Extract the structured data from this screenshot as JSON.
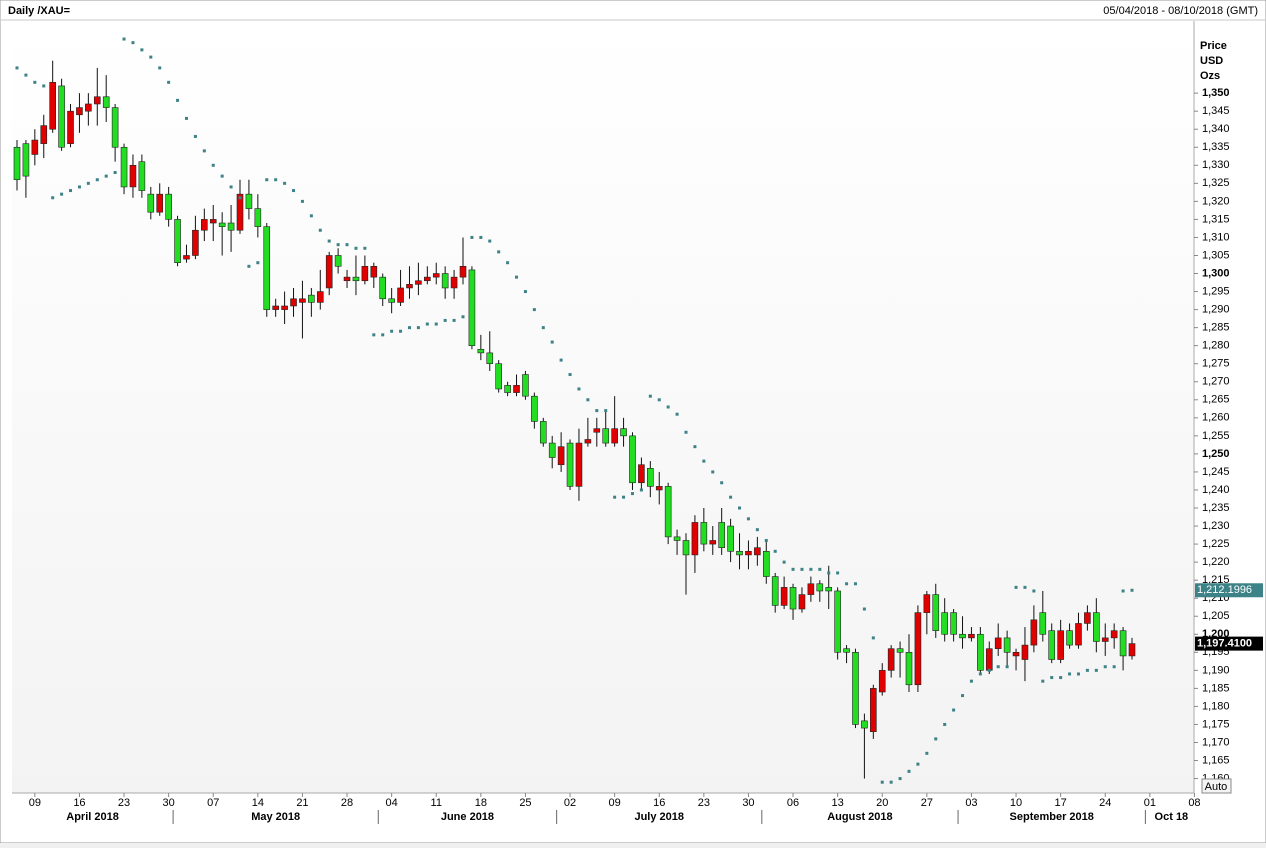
{
  "chart_data": {
    "type": "candlestick",
    "title": "Daily /XAU=",
    "date_range": "05/04/2018 - 08/10/2018 (GMT)",
    "axis_label": [
      "Price",
      "USD",
      "Ozs"
    ],
    "up_color": "#e00000",
    "down_color": "#22dd22",
    "sar_color": "#3d8286",
    "button": "Auto",
    "categories": [
      "2018-04-05",
      "2018-04-06",
      "2018-04-09",
      "2018-04-10",
      "2018-04-11",
      "2018-04-12",
      "2018-04-13",
      "2018-04-16",
      "2018-04-17",
      "2018-04-18",
      "2018-04-19",
      "2018-04-20",
      "2018-04-23",
      "2018-04-24",
      "2018-04-25",
      "2018-04-26",
      "2018-04-27",
      "2018-04-30",
      "2018-05-01",
      "2018-05-02",
      "2018-05-03",
      "2018-05-04",
      "2018-05-07",
      "2018-05-08",
      "2018-05-09",
      "2018-05-10",
      "2018-05-11",
      "2018-05-14",
      "2018-05-15",
      "2018-05-16",
      "2018-05-17",
      "2018-05-18",
      "2018-05-21",
      "2018-05-22",
      "2018-05-23",
      "2018-05-24",
      "2018-05-25",
      "2018-05-28",
      "2018-05-29",
      "2018-05-30",
      "2018-05-31",
      "2018-06-01",
      "2018-06-04",
      "2018-06-05",
      "2018-06-06",
      "2018-06-07",
      "2018-06-08",
      "2018-06-11",
      "2018-06-12",
      "2018-06-13",
      "2018-06-14",
      "2018-06-15",
      "2018-06-18",
      "2018-06-19",
      "2018-06-20",
      "2018-06-21",
      "2018-06-22",
      "2018-06-25",
      "2018-06-26",
      "2018-06-27",
      "2018-06-28",
      "2018-06-29",
      "2018-07-02",
      "2018-07-03",
      "2018-07-04",
      "2018-07-05",
      "2018-07-06",
      "2018-07-09",
      "2018-07-10",
      "2018-07-11",
      "2018-07-12",
      "2018-07-13",
      "2018-07-16",
      "2018-07-17",
      "2018-07-18",
      "2018-07-19",
      "2018-07-20",
      "2018-07-23",
      "2018-07-24",
      "2018-07-25",
      "2018-07-26",
      "2018-07-27",
      "2018-07-30",
      "2018-07-31",
      "2018-08-01",
      "2018-08-02",
      "2018-08-03",
      "2018-08-06",
      "2018-08-07",
      "2018-08-08",
      "2018-08-09",
      "2018-08-10",
      "2018-08-13",
      "2018-08-14",
      "2018-08-15",
      "2018-08-16",
      "2018-08-17",
      "2018-08-20",
      "2018-08-21",
      "2018-08-22",
      "2018-08-23",
      "2018-08-24",
      "2018-08-27",
      "2018-08-28",
      "2018-08-29",
      "2018-08-30",
      "2018-08-31",
      "2018-09-03",
      "2018-09-04",
      "2018-09-05",
      "2018-09-06",
      "2018-09-07",
      "2018-09-10",
      "2018-09-11",
      "2018-09-12",
      "2018-09-13",
      "2018-09-14",
      "2018-09-17",
      "2018-09-18",
      "2018-09-19",
      "2018-09-20",
      "2018-09-21",
      "2018-09-24",
      "2018-09-25",
      "2018-09-26",
      "2018-09-27"
    ],
    "open": [
      1335,
      1336,
      1333,
      1336,
      1340,
      1352,
      1336,
      1344,
      1345,
      1347,
      1349,
      1346,
      1335,
      1324,
      1331,
      1322,
      1317,
      1322,
      1315,
      1304,
      1305,
      1312,
      1314,
      1314,
      1314,
      1312,
      1322,
      1318,
      1313,
      1290,
      1290,
      1291,
      1292,
      1294,
      1292,
      1296,
      1305,
      1298,
      1299,
      1298,
      1299,
      1299,
      1293,
      1292,
      1296,
      1297,
      1298,
      1299,
      1300,
      1296,
      1299,
      1301,
      1279,
      1278,
      1275,
      1269,
      1267,
      1272,
      1266,
      1259,
      1253,
      1247,
      1253,
      1241,
      1253,
      1256,
      1257,
      1253,
      1257,
      1255,
      1242,
      1246,
      1240,
      1241,
      1227,
      1226,
      1222,
      1231,
      1225,
      1231,
      1230,
      1223,
      1222,
      1222,
      1223,
      1216,
      1208,
      1213,
      1207,
      1211,
      1214,
      1213,
      1212,
      1196,
      1195,
      1176,
      1173,
      1184,
      1190,
      1196,
      1195,
      1186,
      1206,
      1211,
      1206,
      1206,
      1200,
      1199,
      1200,
      1190,
      1196,
      1199,
      1194,
      1193,
      1197,
      1206,
      1201,
      1193,
      1201,
      1197,
      1203,
      1206,
      1198,
      1199,
      1201,
      1194
    ],
    "high": [
      1337,
      1337,
      1340,
      1344,
      1359,
      1354,
      1347,
      1350,
      1350,
      1357,
      1355,
      1347,
      1336,
      1333,
      1333,
      1324,
      1325,
      1324,
      1316,
      1308,
      1316,
      1318,
      1319,
      1317,
      1319,
      1326,
      1326,
      1322,
      1314,
      1293,
      1295,
      1296,
      1298,
      1296,
      1301,
      1306,
      1307,
      1301,
      1305,
      1305,
      1303,
      1300,
      1296,
      1301,
      1302,
      1303,
      1302,
      1303,
      1302,
      1301,
      1310,
      1302,
      1283,
      1284,
      1276,
      1270,
      1272,
      1273,
      1267,
      1260,
      1255,
      1256,
      1254,
      1257,
      1260,
      1260,
      1262,
      1266,
      1260,
      1256,
      1249,
      1248,
      1245,
      1242,
      1229,
      1228,
      1233,
      1235,
      1230,
      1235,
      1232,
      1228,
      1226,
      1227,
      1226,
      1217,
      1216,
      1214,
      1213,
      1216,
      1215,
      1219,
      1213,
      1197,
      1196,
      1178,
      1186,
      1192,
      1197,
      1198,
      1200,
      1208,
      1212,
      1214,
      1210,
      1207,
      1205,
      1202,
      1202,
      1198,
      1203,
      1201,
      1196,
      1202,
      1208,
      1212,
      1203,
      1204,
      1203,
      1206,
      1208,
      1210,
      1203,
      1203,
      1202,
      1199
    ],
    "low": [
      1323,
      1321,
      1330,
      1332,
      1339,
      1334,
      1335,
      1339,
      1341,
      1341,
      1342,
      1331,
      1322,
      1321,
      1321,
      1315,
      1316,
      1313,
      1302,
      1303,
      1304,
      1309,
      1309,
      1305,
      1306,
      1311,
      1315,
      1310,
      1288,
      1288,
      1286,
      1288,
      1282,
      1288,
      1290,
      1294,
      1300,
      1296,
      1294,
      1297,
      1296,
      1291,
      1289,
      1291,
      1293,
      1294,
      1297,
      1297,
      1293,
      1293,
      1297,
      1279,
      1276,
      1273,
      1267,
      1266,
      1266,
      1265,
      1257,
      1252,
      1246,
      1245,
      1240,
      1237,
      1252,
      1252,
      1252,
      1252,
      1252,
      1240,
      1240,
      1238,
      1236,
      1225,
      1222,
      1211,
      1217,
      1223,
      1222,
      1222,
      1220,
      1218,
      1218,
      1219,
      1214,
      1206,
      1207,
      1204,
      1206,
      1209,
      1209,
      1207,
      1193,
      1192,
      1174,
      1160,
      1171,
      1183,
      1188,
      1188,
      1184,
      1184,
      1200,
      1199,
      1198,
      1198,
      1196,
      1198,
      1189,
      1189,
      1194,
      1191,
      1190,
      1187,
      1195,
      1198,
      1192,
      1192,
      1196,
      1196,
      1201,
      1195,
      1194,
      1196,
      1190,
      1193
    ],
    "close": [
      1326,
      1327,
      1337,
      1341,
      1353,
      1335,
      1345,
      1346,
      1347,
      1349,
      1346,
      1335,
      1324,
      1330,
      1323,
      1317,
      1322,
      1315,
      1303,
      1305,
      1312,
      1315,
      1315,
      1313,
      1312,
      1322,
      1318,
      1313,
      1290,
      1291,
      1291,
      1293,
      1293,
      1292,
      1295,
      1305,
      1302,
      1299,
      1298,
      1302,
      1302,
      1293,
      1292,
      1296,
      1297,
      1298,
      1299,
      1300,
      1296,
      1299,
      1302,
      1280,
      1278,
      1275,
      1268,
      1267,
      1269,
      1266,
      1259,
      1253,
      1249,
      1252,
      1241,
      1253,
      1254,
      1257,
      1253,
      1257,
      1255,
      1242,
      1247,
      1241,
      1241,
      1227,
      1226,
      1222,
      1231,
      1225,
      1226,
      1224,
      1223,
      1222,
      1223,
      1224,
      1216,
      1208,
      1213,
      1207,
      1211,
      1214,
      1212,
      1212,
      1195,
      1195,
      1175,
      1174,
      1185,
      1190,
      1196,
      1195,
      1186,
      1206,
      1211,
      1201,
      1200,
      1200,
      1199,
      1200,
      1190,
      1196,
      1199,
      1195,
      1195,
      1197,
      1204,
      1200,
      1193,
      1201,
      1197,
      1203,
      1206,
      1198,
      1199,
      1201,
      1194,
      1197.41
    ],
    "sar": [
      1357,
      1355,
      1353,
      1352,
      1321,
      1322,
      1323,
      1324,
      1325,
      1326,
      1327,
      1328,
      1365,
      1364,
      1362,
      1360,
      1357,
      1353,
      1348,
      1343,
      1338,
      1334,
      1330,
      1327,
      1324,
      1321,
      1302,
      1303,
      1326,
      1326,
      1325,
      1323,
      1320,
      1316,
      1312,
      1309,
      1308,
      1308,
      1307,
      1307,
      1283,
      1283,
      1284,
      1284,
      1285,
      1285,
      1286,
      1286,
      1287,
      1287,
      1288,
      1310,
      1310,
      1309,
      1306,
      1303,
      1299,
      1295,
      1290,
      1285,
      1281,
      1276,
      1272,
      1268,
      1265,
      1262,
      1262,
      1238,
      1238,
      1239,
      1240,
      1266,
      1265,
      1263,
      1261,
      1256,
      1252,
      1248,
      1245,
      1242,
      1238,
      1235,
      1232,
      1229,
      1226,
      1223,
      1220,
      1218,
      1218,
      1218,
      1218,
      1217,
      1217,
      1214,
      1214,
      1207,
      1199,
      1159,
      1159,
      1160,
      1162,
      1164,
      1167,
      1171,
      1175,
      1179,
      1183,
      1187,
      1189,
      1190,
      1191,
      1191,
      1213,
      1213,
      1212,
      1187,
      1188,
      1188,
      1189,
      1189,
      1190,
      1190,
      1191,
      1191,
      1212,
      1212.1996
    ],
    "tags": [
      {
        "value": 1212.1996,
        "label": "1,212.1996"
      },
      {
        "value": 1197.41,
        "label": "1,197.4100"
      }
    ],
    "ylim": [
      1156,
      1370
    ],
    "yticks": [
      {
        "value": 1160,
        "label": "1,160"
      },
      {
        "value": 1165,
        "label": "1,165"
      },
      {
        "value": 1170,
        "label": "1,170"
      },
      {
        "value": 1175,
        "label": "1,175"
      },
      {
        "value": 1180,
        "label": "1,180"
      },
      {
        "value": 1185,
        "label": "1,185"
      },
      {
        "value": 1190,
        "label": "1,190"
      },
      {
        "value": 1195,
        "label": "1,195"
      },
      {
        "value": 1200,
        "label": "1,200"
      },
      {
        "value": 1205,
        "label": "1,205"
      },
      {
        "value": 1210,
        "label": "1,210"
      },
      {
        "value": 1215,
        "label": "1,215"
      },
      {
        "value": 1220,
        "label": "1,220"
      },
      {
        "value": 1225,
        "label": "1,225"
      },
      {
        "value": 1230,
        "label": "1,230"
      },
      {
        "value": 1235,
        "label": "1,235"
      },
      {
        "value": 1240,
        "label": "1,240"
      },
      {
        "value": 1245,
        "label": "1,245"
      },
      {
        "value": 1250,
        "label": "1,250"
      },
      {
        "value": 1255,
        "label": "1,255"
      },
      {
        "value": 1260,
        "label": "1,260"
      },
      {
        "value": 1265,
        "label": "1,265"
      },
      {
        "value": 1270,
        "label": "1,270"
      },
      {
        "value": 1275,
        "label": "1,275"
      },
      {
        "value": 1280,
        "label": "1,280"
      },
      {
        "value": 1285,
        "label": "1,285"
      },
      {
        "value": 1290,
        "label": "1,290"
      },
      {
        "value": 1295,
        "label": "1,295"
      },
      {
        "value": 1300,
        "label": "1,300"
      },
      {
        "value": 1305,
        "label": "1,305"
      },
      {
        "value": 1310,
        "label": "1,310"
      },
      {
        "value": 1315,
        "label": "1,315"
      },
      {
        "value": 1320,
        "label": "1,320"
      },
      {
        "value": 1325,
        "label": "1,325"
      },
      {
        "value": 1330,
        "label": "1,330"
      },
      {
        "value": 1335,
        "label": "1,335"
      },
      {
        "value": 1340,
        "label": "1,340"
      },
      {
        "value": 1345,
        "label": "1,345"
      },
      {
        "value": 1350,
        "label": "1,350"
      }
    ],
    "xticks": [
      {
        "value": "2018-04-09",
        "label": "09"
      },
      {
        "value": "2018-04-16",
        "label": "16"
      },
      {
        "value": "2018-04-23",
        "label": "23"
      },
      {
        "value": "2018-04-30",
        "label": "30"
      },
      {
        "value": "2018-05-07",
        "label": "07"
      },
      {
        "value": "2018-05-14",
        "label": "14"
      },
      {
        "value": "2018-05-21",
        "label": "21"
      },
      {
        "value": "2018-05-28",
        "label": "28"
      },
      {
        "value": "2018-06-04",
        "label": "04"
      },
      {
        "value": "2018-06-11",
        "label": "11"
      },
      {
        "value": "2018-06-18",
        "label": "18"
      },
      {
        "value": "2018-06-25",
        "label": "25"
      },
      {
        "value": "2018-07-02",
        "label": "02"
      },
      {
        "value": "2018-07-09",
        "label": "09"
      },
      {
        "value": "2018-07-16",
        "label": "16"
      },
      {
        "value": "2018-07-23",
        "label": "23"
      },
      {
        "value": "2018-07-30",
        "label": "30"
      },
      {
        "value": "2018-08-06",
        "label": "06"
      },
      {
        "value": "2018-08-13",
        "label": "13"
      },
      {
        "value": "2018-08-20",
        "label": "20"
      },
      {
        "value": "2018-08-27",
        "label": "27"
      },
      {
        "value": "2018-09-03",
        "label": "03"
      },
      {
        "value": "2018-09-10",
        "label": "10"
      },
      {
        "value": "2018-09-17",
        "label": "17"
      },
      {
        "value": "2018-09-24",
        "label": "24"
      },
      {
        "value": "2018-10-01",
        "label": "01"
      },
      {
        "value": "2018-10-08",
        "label": "08"
      }
    ],
    "months": [
      {
        "value": "2018-04",
        "label": "April 2018"
      },
      {
        "value": "2018-05",
        "label": "May 2018"
      },
      {
        "value": "2018-06",
        "label": "June 2018"
      },
      {
        "value": "2018-07",
        "label": "July 2018"
      },
      {
        "value": "2018-08",
        "label": "August 2018"
      },
      {
        "value": "2018-09",
        "label": "September 2018"
      },
      {
        "value": "2018-10",
        "label": "Oct 18"
      }
    ]
  }
}
